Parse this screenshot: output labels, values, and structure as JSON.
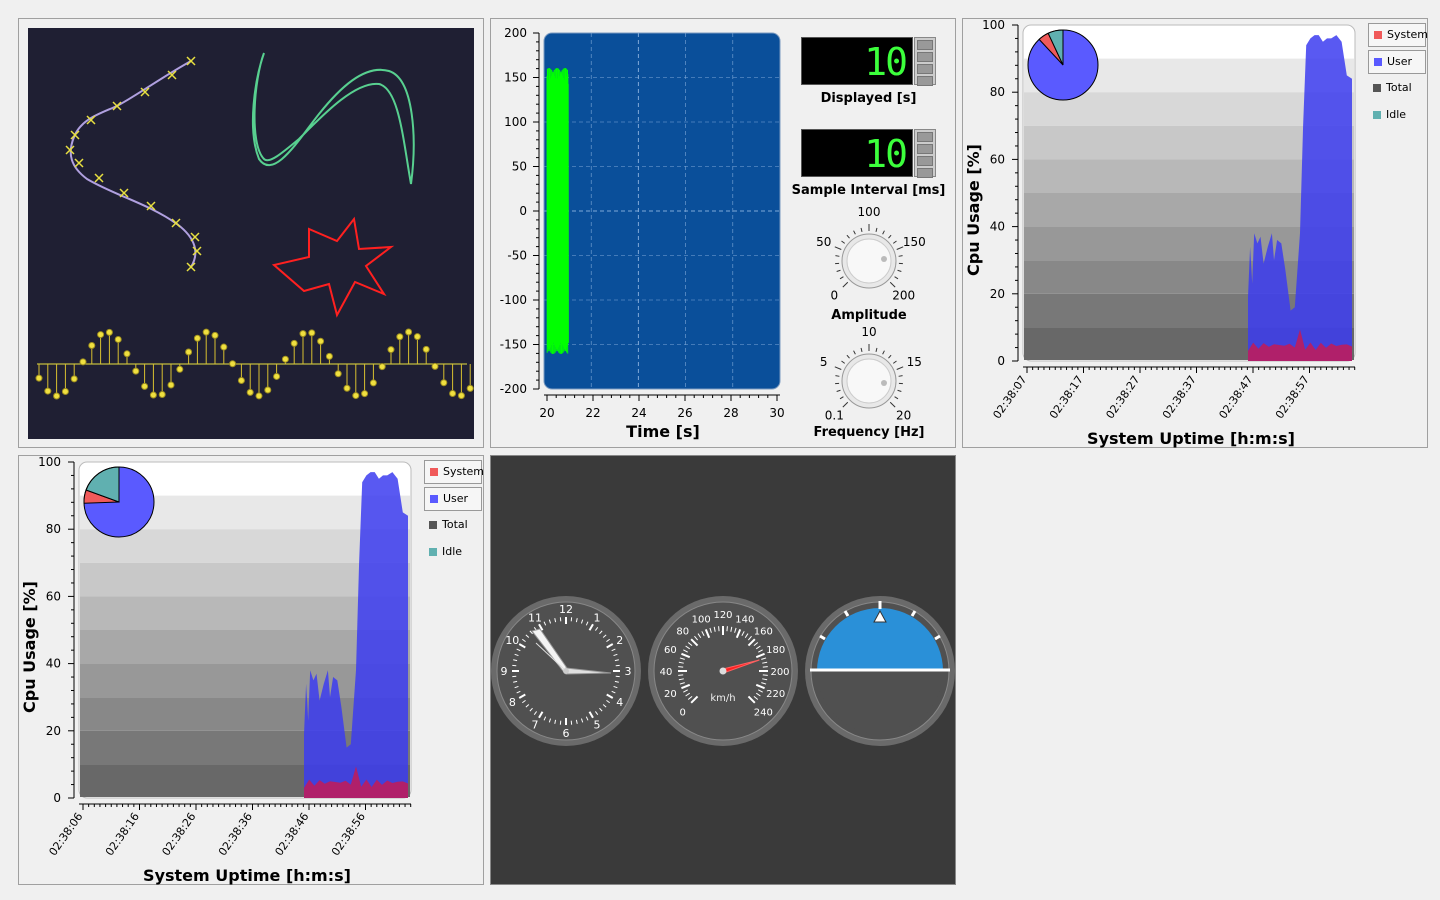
{
  "colors": {
    "canvas_bg": "#1f1f33",
    "plot_bg": "#0a4f9a",
    "signal": "#00ff00",
    "system": "#f05a5a",
    "user": "#5a5aff",
    "total": "#555555",
    "idle": "#60b0b0",
    "horizon": "#2a90d8"
  },
  "oscilloscope": {
    "y_ticks": [
      "200",
      "150",
      "100",
      "50",
      "0",
      "-50",
      "-100",
      "-150",
      "-200"
    ],
    "x_ticks": [
      "20",
      "22",
      "24",
      "26",
      "28",
      "30"
    ],
    "x_label": "Time [s]",
    "displayed": {
      "value": "10",
      "label": "Displayed [s]"
    },
    "sample_interval": {
      "value": "10",
      "label": "Sample Interval [ms]"
    },
    "amplitude": {
      "label": "Amplitude",
      "ticks": [
        "0",
        "50",
        "100",
        "150",
        "200"
      ]
    },
    "frequency": {
      "label": "Frequency [Hz]",
      "ticks": [
        "0.1",
        "5",
        "10",
        "15",
        "20"
      ]
    }
  },
  "cpu_plot_1": {
    "y_label": "Cpu Usage [%]",
    "x_label": "System Uptime [h:m:s]",
    "y_ticks": [
      "100",
      "80",
      "60",
      "40",
      "20",
      "0"
    ],
    "x_ticks": [
      "02:38:07",
      "02:38:17",
      "02:38:27",
      "02:38:37",
      "02:38:47",
      "02:38:57"
    ],
    "legend": [
      {
        "name": "System",
        "color": "#f05a5a"
      },
      {
        "name": "User",
        "color": "#5a5aff"
      },
      {
        "name": "Total",
        "color": "#555555"
      },
      {
        "name": "Idle",
        "color": "#60b0b0"
      }
    ]
  },
  "cpu_plot_2": {
    "y_label": "Cpu Usage [%]",
    "x_label": "System Uptime [h:m:s]",
    "y_ticks": [
      "100",
      "80",
      "60",
      "40",
      "20",
      "0"
    ],
    "x_ticks": [
      "02:38:06",
      "02:38:16",
      "02:38:26",
      "02:38:36",
      "02:38:46",
      "02:38:56"
    ],
    "legend": [
      {
        "name": "System",
        "color": "#f05a5a"
      },
      {
        "name": "User",
        "color": "#5a5aff"
      },
      {
        "name": "Total",
        "color": "#555555"
      },
      {
        "name": "Idle",
        "color": "#60b0b0"
      }
    ]
  },
  "dials": {
    "clock_numbers": [
      "12",
      "1",
      "2",
      "3",
      "4",
      "5",
      "6",
      "7",
      "8",
      "9",
      "10",
      "11"
    ],
    "speedo_numbers": [
      "0",
      "20",
      "40",
      "60",
      "80",
      "100",
      "120",
      "140",
      "160",
      "180",
      "200",
      "220",
      "240"
    ],
    "speedo_unit": "km/h",
    "speed_value": 185
  }
}
